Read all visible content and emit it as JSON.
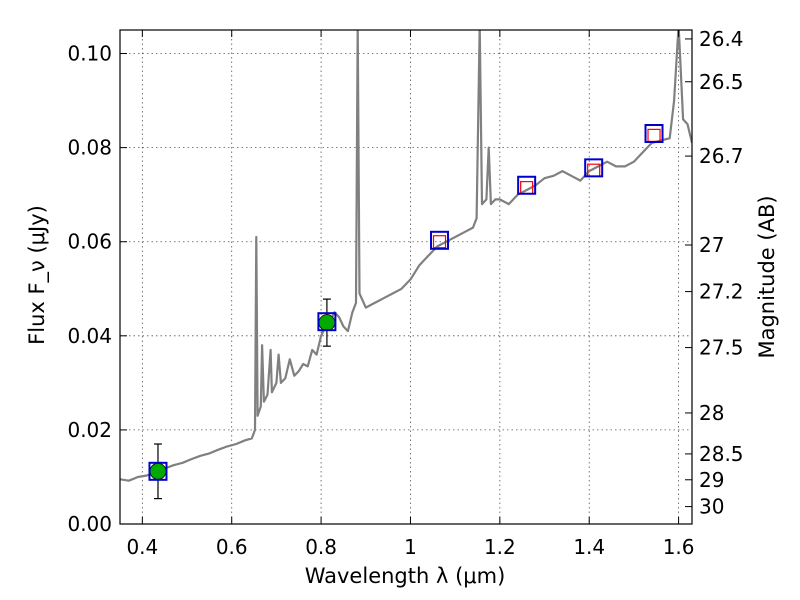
{
  "chart_data": {
    "type": "scatter",
    "xlabel": "Wavelength λ (μm)",
    "ylabel": "Flux F_ν (μJy)",
    "y2label": "Magnitude (AB)",
    "xlim": [
      0.35,
      1.63
    ],
    "ylim": [
      0.0,
      0.105
    ],
    "grid": true,
    "x_ticks": [
      {
        "value": 0.4,
        "label": "0.4"
      },
      {
        "value": 0.6,
        "label": "0.6"
      },
      {
        "value": 0.8,
        "label": "0.8"
      },
      {
        "value": 1.0,
        "label": "1"
      },
      {
        "value": 1.2,
        "label": "1.2"
      },
      {
        "value": 1.4,
        "label": "1.4"
      },
      {
        "value": 1.6,
        "label": "1.6"
      }
    ],
    "y_ticks": [
      {
        "value": 0.0,
        "label": "0.00"
      },
      {
        "value": 0.02,
        "label": "0.02"
      },
      {
        "value": 0.04,
        "label": "0.04"
      },
      {
        "value": 0.06,
        "label": "0.06"
      },
      {
        "value": 0.08,
        "label": "0.08"
      },
      {
        "value": 0.1,
        "label": "0.10"
      }
    ],
    "y2_ticks": [
      {
        "label": "26.4",
        "flux": 0.1031
      },
      {
        "label": "26.5",
        "flux": 0.094
      },
      {
        "label": "26.7",
        "flux": 0.0782
      },
      {
        "label": "27",
        "flux": 0.0593
      },
      {
        "label": "27.2",
        "flux": 0.0494
      },
      {
        "label": "27.5",
        "flux": 0.0375
      },
      {
        "label": "28",
        "flux": 0.0236
      },
      {
        "label": "28.5",
        "flux": 0.0149
      },
      {
        "label": "29",
        "flux": 0.0094
      },
      {
        "label": "30",
        "flux": 0.0037
      }
    ],
    "colors": {
      "spectrum": "#808080",
      "observed_point": "#00aa00",
      "model_box": "#0000cc",
      "predicted_box": "#ff0000"
    },
    "spectrum": [
      [
        0.35,
        0.0095
      ],
      [
        0.37,
        0.0092
      ],
      [
        0.39,
        0.01
      ],
      [
        0.41,
        0.0103
      ],
      [
        0.43,
        0.011
      ],
      [
        0.45,
        0.0118
      ],
      [
        0.47,
        0.0125
      ],
      [
        0.49,
        0.013
      ],
      [
        0.51,
        0.0138
      ],
      [
        0.53,
        0.0145
      ],
      [
        0.55,
        0.015
      ],
      [
        0.57,
        0.0158
      ],
      [
        0.59,
        0.0165
      ],
      [
        0.61,
        0.017
      ],
      [
        0.63,
        0.0178
      ],
      [
        0.645,
        0.0182
      ],
      [
        0.652,
        0.02
      ],
      [
        0.655,
        0.061
      ],
      [
        0.658,
        0.023
      ],
      [
        0.665,
        0.025
      ],
      [
        0.668,
        0.038
      ],
      [
        0.672,
        0.026
      ],
      [
        0.68,
        0.0275
      ],
      [
        0.687,
        0.037
      ],
      [
        0.69,
        0.028
      ],
      [
        0.7,
        0.03
      ],
      [
        0.705,
        0.036
      ],
      [
        0.71,
        0.03
      ],
      [
        0.72,
        0.031
      ],
      [
        0.73,
        0.035
      ],
      [
        0.74,
        0.0315
      ],
      [
        0.75,
        0.0325
      ],
      [
        0.76,
        0.034
      ],
      [
        0.77,
        0.0335
      ],
      [
        0.78,
        0.037
      ],
      [
        0.79,
        0.036
      ],
      [
        0.8,
        0.04
      ],
      [
        0.81,
        0.042
      ],
      [
        0.82,
        0.043
      ],
      [
        0.83,
        0.045
      ],
      [
        0.84,
        0.044
      ],
      [
        0.85,
        0.042
      ],
      [
        0.86,
        0.041
      ],
      [
        0.87,
        0.045
      ],
      [
        0.878,
        0.047
      ],
      [
        0.882,
        0.106
      ],
      [
        0.886,
        0.049
      ],
      [
        0.9,
        0.046
      ],
      [
        0.92,
        0.047
      ],
      [
        0.94,
        0.048
      ],
      [
        0.96,
        0.049
      ],
      [
        0.98,
        0.05
      ],
      [
        1.0,
        0.052
      ],
      [
        1.02,
        0.055
      ],
      [
        1.04,
        0.057
      ],
      [
        1.06,
        0.059
      ],
      [
        1.08,
        0.06
      ],
      [
        1.1,
        0.061
      ],
      [
        1.12,
        0.062
      ],
      [
        1.14,
        0.063
      ],
      [
        1.148,
        0.065
      ],
      [
        1.155,
        0.106
      ],
      [
        1.16,
        0.068
      ],
      [
        1.17,
        0.069
      ],
      [
        1.175,
        0.08
      ],
      [
        1.18,
        0.068
      ],
      [
        1.19,
        0.069
      ],
      [
        1.2,
        0.069
      ],
      [
        1.22,
        0.068
      ],
      [
        1.24,
        0.07
      ],
      [
        1.26,
        0.071
      ],
      [
        1.28,
        0.072
      ],
      [
        1.3,
        0.0735
      ],
      [
        1.32,
        0.074
      ],
      [
        1.34,
        0.075
      ],
      [
        1.36,
        0.074
      ],
      [
        1.38,
        0.073
      ],
      [
        1.4,
        0.075
      ],
      [
        1.42,
        0.076
      ],
      [
        1.44,
        0.077
      ],
      [
        1.46,
        0.076
      ],
      [
        1.48,
        0.076
      ],
      [
        1.5,
        0.077
      ],
      [
        1.52,
        0.079
      ],
      [
        1.54,
        0.081
      ],
      [
        1.56,
        0.0815
      ],
      [
        1.58,
        0.082
      ],
      [
        1.59,
        0.09
      ],
      [
        1.6,
        0.106
      ],
      [
        1.61,
        0.086
      ],
      [
        1.62,
        0.085
      ],
      [
        1.63,
        0.081
      ]
    ],
    "observed_points": [
      {
        "x": 0.435,
        "y": 0.0112,
        "yerr": 0.0058
      },
      {
        "x": 0.813,
        "y": 0.0428,
        "yerr": 0.005
      }
    ],
    "model_boxes": [
      {
        "x": 0.435,
        "y": 0.0112
      },
      {
        "x": 0.813,
        "y": 0.043
      },
      {
        "x": 1.065,
        "y": 0.0603
      },
      {
        "x": 1.26,
        "y": 0.072
      },
      {
        "x": 1.41,
        "y": 0.0757
      },
      {
        "x": 1.545,
        "y": 0.083
      }
    ],
    "predicted_boxes": [
      {
        "x": 1.065,
        "y": 0.06
      },
      {
        "x": 1.26,
        "y": 0.0715
      },
      {
        "x": 1.41,
        "y": 0.0752
      },
      {
        "x": 1.545,
        "y": 0.0826
      }
    ]
  }
}
